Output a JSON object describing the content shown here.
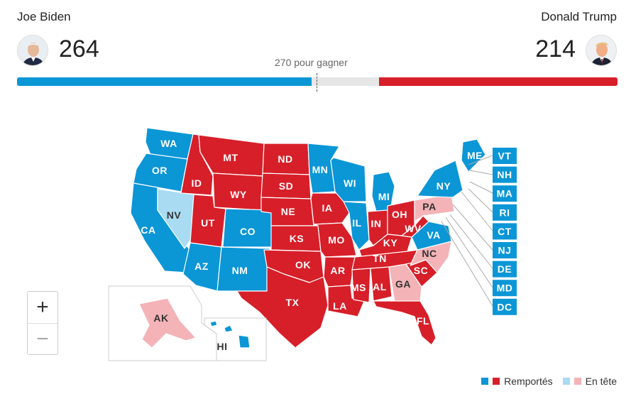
{
  "header": {
    "dem": {
      "name": "Joe Biden",
      "votes": "264",
      "avatar": "biden-avatar"
    },
    "rep": {
      "name": "Donald Trump",
      "votes": "214",
      "avatar": "trump-avatar"
    },
    "threshold_label": "270 pour gagner",
    "total_votes": 538,
    "threshold": 270
  },
  "colors": {
    "dem_won": "#0b96d6",
    "rep_won": "#d71f29",
    "dem_lead": "#a9dbf2",
    "rep_lead": "#f3b3b7"
  },
  "legend": {
    "won": "Remportés",
    "leading": "En tête"
  },
  "zoom": {
    "in": "+",
    "out": "−"
  },
  "states": [
    {
      "code": "WA",
      "status": "dem_won"
    },
    {
      "code": "OR",
      "status": "dem_won"
    },
    {
      "code": "CA",
      "status": "dem_won"
    },
    {
      "code": "NV",
      "status": "dem_lead"
    },
    {
      "code": "ID",
      "status": "rep_won"
    },
    {
      "code": "MT",
      "status": "rep_won"
    },
    {
      "code": "WY",
      "status": "rep_won"
    },
    {
      "code": "UT",
      "status": "rep_won"
    },
    {
      "code": "AZ",
      "status": "dem_won"
    },
    {
      "code": "CO",
      "status": "dem_won"
    },
    {
      "code": "NM",
      "status": "dem_won"
    },
    {
      "code": "ND",
      "status": "rep_won"
    },
    {
      "code": "SD",
      "status": "rep_won"
    },
    {
      "code": "NE",
      "status": "rep_won"
    },
    {
      "code": "KS",
      "status": "rep_won"
    },
    {
      "code": "OK",
      "status": "rep_won"
    },
    {
      "code": "TX",
      "status": "rep_won"
    },
    {
      "code": "MN",
      "status": "dem_won"
    },
    {
      "code": "IA",
      "status": "rep_won"
    },
    {
      "code": "MO",
      "status": "rep_won"
    },
    {
      "code": "AR",
      "status": "rep_won"
    },
    {
      "code": "LA",
      "status": "rep_won"
    },
    {
      "code": "WI",
      "status": "dem_won"
    },
    {
      "code": "IL",
      "status": "dem_won"
    },
    {
      "code": "MI",
      "status": "dem_won"
    },
    {
      "code": "IN",
      "status": "rep_won"
    },
    {
      "code": "OH",
      "status": "rep_won"
    },
    {
      "code": "KY",
      "status": "rep_won"
    },
    {
      "code": "TN",
      "status": "rep_won"
    },
    {
      "code": "MS",
      "status": "rep_won"
    },
    {
      "code": "AL",
      "status": "rep_won"
    },
    {
      "code": "GA",
      "status": "rep_lead"
    },
    {
      "code": "FL",
      "status": "rep_won"
    },
    {
      "code": "SC",
      "status": "rep_won"
    },
    {
      "code": "NC",
      "status": "rep_lead"
    },
    {
      "code": "VA",
      "status": "dem_won"
    },
    {
      "code": "WV",
      "status": "rep_won"
    },
    {
      "code": "PA",
      "status": "rep_lead"
    },
    {
      "code": "NY",
      "status": "dem_won"
    },
    {
      "code": "ME",
      "status": "dem_won"
    },
    {
      "code": "AK",
      "status": "rep_lead"
    },
    {
      "code": "HI",
      "status": "dem_won"
    }
  ],
  "small_states": [
    {
      "code": "VT",
      "status": "dem_won"
    },
    {
      "code": "NH",
      "status": "dem_won"
    },
    {
      "code": "MA",
      "status": "dem_won"
    },
    {
      "code": "RI",
      "status": "dem_won"
    },
    {
      "code": "CT",
      "status": "dem_won"
    },
    {
      "code": "NJ",
      "status": "dem_won"
    },
    {
      "code": "DE",
      "status": "dem_won"
    },
    {
      "code": "MD",
      "status": "dem_won"
    },
    {
      "code": "DC",
      "status": "dem_won"
    }
  ]
}
